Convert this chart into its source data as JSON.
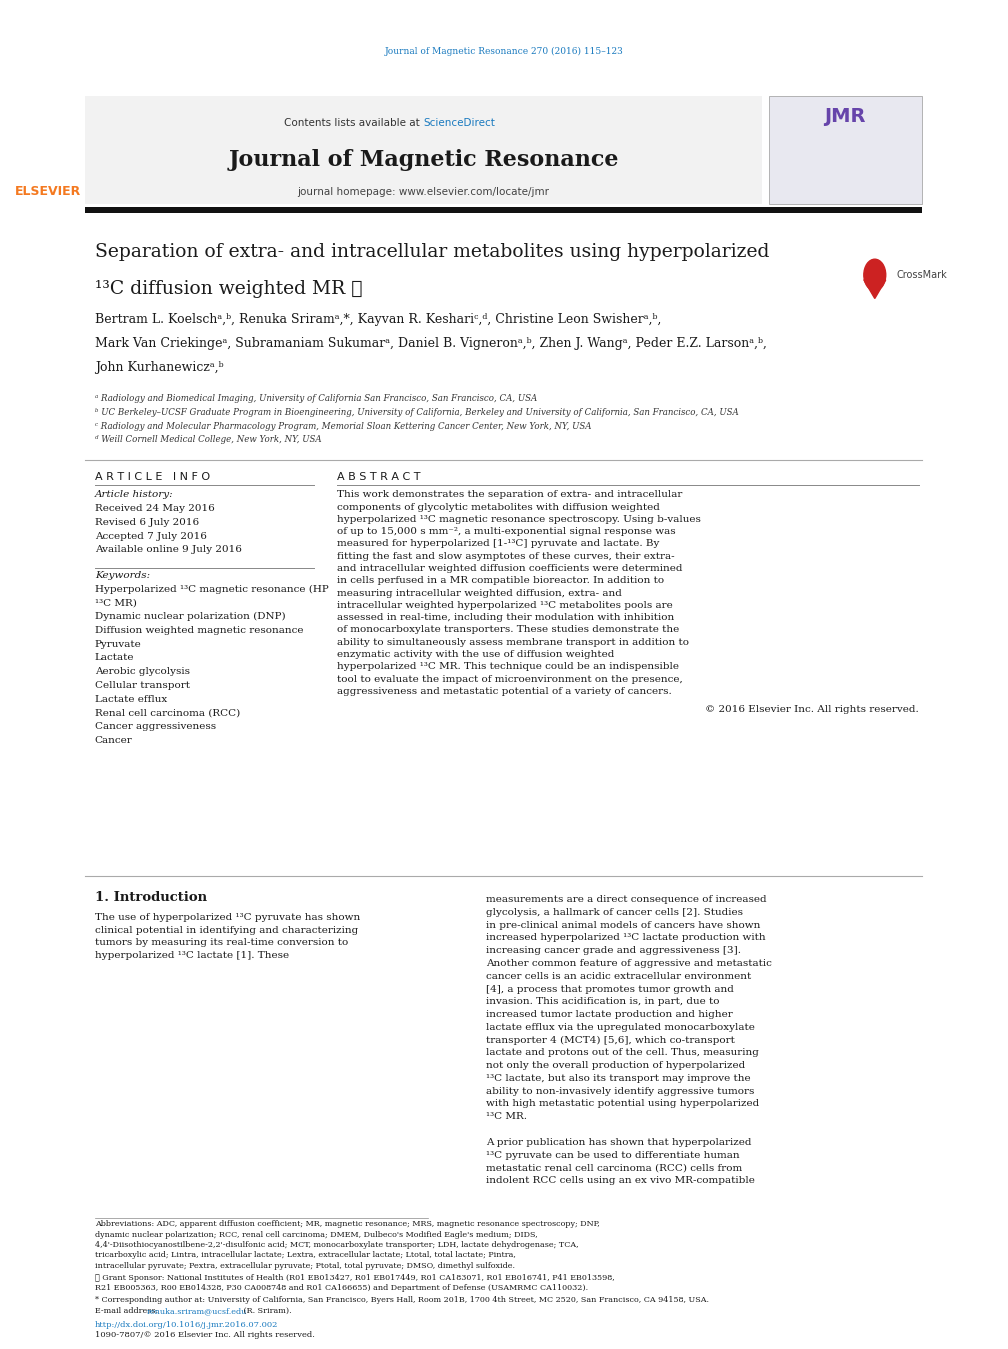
{
  "page_width": 9.92,
  "page_height": 13.23,
  "background_color": "#ffffff",
  "top_citation": "Journal of Magnetic Resonance 270 (2016) 115–123",
  "header_bg": "#f2f2f2",
  "sciencedirect_color": "#1a7abf",
  "journal_name": "Journal of Magnetic Resonance",
  "homepage_text": "journal homepage: www.elsevier.com/locate/jmr",
  "article_title_line1": "Separation of extra- and intracellular metabolites using hyperpolarized",
  "article_title_line2": "¹³C diffusion weighted MR ☆",
  "authors": "Bertram L. Koelschᵃ,ᵇ, Renuka Sriramᵃ,*, Kayvan R. Keshariᶜ,ᵈ, Christine Leon Swisherᵃ,ᵇ,",
  "authors2": "Mark Van Criekingeᵃ, Subramaniam Sukumarᵃ, Daniel B. Vigneronᵃ,ᵇ, Zhen J. Wangᵃ, Peder E.Z. Larsonᵃ,ᵇ,",
  "authors3": "John Kurhanewiczᵃ,ᵇ",
  "affil1": "ᵃ Radiology and Biomedical Imaging, University of California San Francisco, San Francisco, CA, USA",
  "affil2": "ᵇ UC Berkeley–UCSF Graduate Program in Bioengineering, University of California, Berkeley and University of California, San Francisco, CA, USA",
  "affil3": "ᶜ Radiology and Molecular Pharmacology Program, Memorial Sloan Kettering Cancer Center, New York, NY, USA",
  "affil4": "ᵈ Weill Cornell Medical College, New York, NY, USA",
  "article_info_title": "A R T I C L E   I N F O",
  "abstract_title": "A B S T R A C T",
  "article_history_label": "Article history:",
  "received": "Received 24 May 2016",
  "revised": "Revised 6 July 2016",
  "accepted": "Accepted 7 July 2016",
  "available": "Available online 9 July 2016",
  "keywords_label": "Keywords:",
  "keywords": [
    "Hyperpolarized ¹³C magnetic resonance (HP",
    "¹³C MR)",
    "Dynamic nuclear polarization (DNP)",
    "Diffusion weighted magnetic resonance",
    "Pyruvate",
    "Lactate",
    "Aerobic glycolysis",
    "Cellular transport",
    "Lactate efflux",
    "Renal cell carcinoma (RCC)",
    "Cancer aggressiveness",
    "Cancer"
  ],
  "abstract_text": "This work demonstrates the separation of extra- and intracellular components of glycolytic metabolites with diffusion weighted hyperpolarized ¹³C magnetic resonance spectroscopy. Using b-values of up to 15,000 s mm⁻², a multi-exponential signal response was measured for hyperpolarized [1-¹³C] pyruvate and lactate. By fitting the fast and slow asymptotes of these curves, their extra- and intracellular weighted diffusion coefficients were determined in cells perfused in a MR compatible bioreactor. In addition to measuring intracellular weighted diffusion, extra- and intracellular weighted hyperpolarized ¹³C metabolites pools are assessed in real-time, including their modulation with inhibition of monocarboxylate transporters. These studies demonstrate the ability to simultaneously assess membrane transport in addition to enzymatic activity with the use of diffusion weighted hyperpolarized ¹³C MR. This technique could be an indispensible tool to evaluate the impact of microenvironment on the presence, aggressiveness and metastatic potential of a variety of cancers.",
  "copyright_text": "© 2016 Elsevier Inc. All rights reserved.",
  "intro_title": "1. Introduction",
  "intro_col1_text": "     The use of hyperpolarized ¹³C pyruvate has shown clinical potential in identifying and characterizing tumors by measuring its real-time conversion to hyperpolarized ¹³C lactate [1]. These",
  "intro_col2_text": "measurements are a direct consequence of increased glycolysis, a hallmark of cancer cells [2]. Studies in pre-clinical animal models of cancers have shown increased hyperpolarized ¹³C lactate production with increasing cancer grade and aggressiveness [3]. Another common feature of aggressive and metastatic cancer cells is an acidic extracellular environment [4], a process that promotes tumor growth and invasion. This acidification is, in part, due to increased tumor lactate production and higher lactate efflux via the upregulated monocarboxylate transporter 4 (MCT4) [5,6], which co-transport lactate and protons out of the cell. Thus, measuring not only the overall production of hyperpolarized ¹³C lactate, but also its transport may improve the ability to non-invasively identify aggressive tumors with high metastatic potential using hyperpolarized ¹³C MR.",
  "intro_col2_para2": "     A prior publication has shown that hyperpolarized ¹³C pyruvate can be used to differentiate human metastatic renal cell carcinoma (RCC) cells from indolent RCC cells using an ex vivo MR-compatible",
  "footnote_abbrev": "Abbreviations: ADC, apparent diffusion coefficient; MR, magnetic resonance; MRS, magnetic resonance spectroscopy; DNP, dynamic nuclear polarization; RCC, renal cell carcinoma; DMEM, Dulbeco's Modified Eagle's medium; DIDS, 4,4'-Diisothiocyanostilbene-2,2'-disulfonic acid; MCT, monocarboxylate transporter; LDH, lactate dehydrogenase; TCA, tricarboxylic acid; Lintra, intracellular lactate; Lextra, extracellular lactate; Ltotal, total lactate; Pintra, intracellular pyruvate; Pextra, extracellular pyruvate; Ptotal, total pyruvate; DMSO, dimethyl sulfoxide.",
  "footnote_grant": "☆ Grant Sponsor: National Institutes of Health (R01 EB013427, R01 EB017449, R01 CA183071, R01 EB016741, P41 EB013598, R21 EB005363, R00 EB014328, P30 CA008748 and R01 CA166655) and Department of Defense (USAMRMC CA110032).",
  "footnote_corresponding": "* Corresponding author at: University of California, San Francisco, Byers Hall, Room 201B, 1700 4th Street, MC 2520, San Francisco, CA 94158, USA.",
  "footnote_email_prefix": "E-mail address: ",
  "footnote_email_link": "renuka.sriram@ucsf.edu",
  "footnote_email_suffix": " (R. Sriram).",
  "doi_text": "http://dx.doi.org/10.1016/j.jmr.2016.07.002",
  "issn_text": "1090-7807/© 2016 Elsevier Inc. All rights reserved.",
  "elsevier_orange": "#F47920",
  "link_color": "#1a7abf",
  "text_color": "#1a1a1a",
  "gray_color": "#555555"
}
